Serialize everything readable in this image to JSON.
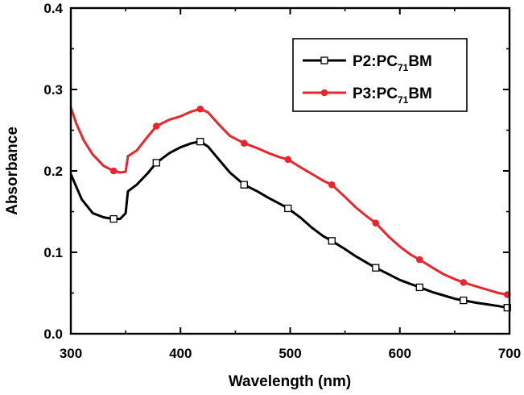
{
  "chart_data": {
    "type": "line",
    "xlabel": "Wavelength (nm)",
    "ylabel": "Absorbance",
    "xlim": [
      300,
      700
    ],
    "ylim": [
      0.0,
      0.4
    ],
    "xticks": [
      "300",
      "400",
      "500",
      "600",
      "700"
    ],
    "yticks": [
      "0.0",
      "0.1",
      "0.2",
      "0.3",
      "0.4"
    ],
    "grid": false,
    "legend_position": "top-right",
    "series": [
      {
        "name_prefix": "P2:PC",
        "name_sub": "71",
        "name_suffix": "BM",
        "color": "#000000",
        "marker": "open-square",
        "curve": [
          [
            300,
            0.196
          ],
          [
            310,
            0.165
          ],
          [
            320,
            0.148
          ],
          [
            330,
            0.143
          ],
          [
            339,
            0.141
          ],
          [
            345,
            0.141
          ],
          [
            350,
            0.148
          ],
          [
            352,
            0.175
          ],
          [
            360,
            0.183
          ],
          [
            370,
            0.197
          ],
          [
            378,
            0.21
          ],
          [
            390,
            0.222
          ],
          [
            400,
            0.229
          ],
          [
            410,
            0.234
          ],
          [
            418,
            0.236
          ],
          [
            425,
            0.23
          ],
          [
            435,
            0.214
          ],
          [
            445,
            0.198
          ],
          [
            458,
            0.183
          ],
          [
            470,
            0.175
          ],
          [
            480,
            0.167
          ],
          [
            490,
            0.16
          ],
          [
            498,
            0.154
          ],
          [
            510,
            0.142
          ],
          [
            520,
            0.13
          ],
          [
            530,
            0.12
          ],
          [
            538,
            0.114
          ],
          [
            550,
            0.104
          ],
          [
            560,
            0.095
          ],
          [
            570,
            0.087
          ],
          [
            578,
            0.081
          ],
          [
            590,
            0.073
          ],
          [
            600,
            0.066
          ],
          [
            610,
            0.061
          ],
          [
            618,
            0.057
          ],
          [
            630,
            0.051
          ],
          [
            640,
            0.047
          ],
          [
            650,
            0.043
          ],
          [
            658,
            0.041
          ],
          [
            670,
            0.038
          ],
          [
            680,
            0.036
          ],
          [
            690,
            0.034
          ],
          [
            698,
            0.032
          ]
        ],
        "markers": [
          [
            339,
            0.141
          ],
          [
            378,
            0.21
          ],
          [
            418,
            0.236
          ],
          [
            458,
            0.183
          ],
          [
            498,
            0.154
          ],
          [
            538,
            0.114
          ],
          [
            578,
            0.081
          ],
          [
            618,
            0.057
          ],
          [
            658,
            0.041
          ],
          [
            698,
            0.032
          ]
        ]
      },
      {
        "name_prefix": "P3:PC",
        "name_sub": "71",
        "name_suffix": "BM",
        "color": "#e8262b",
        "marker": "filled-circle",
        "curve": [
          [
            300,
            0.278
          ],
          [
            305,
            0.258
          ],
          [
            312,
            0.237
          ],
          [
            320,
            0.22
          ],
          [
            330,
            0.206
          ],
          [
            339,
            0.2
          ],
          [
            345,
            0.198
          ],
          [
            350,
            0.199
          ],
          [
            352,
            0.218
          ],
          [
            360,
            0.225
          ],
          [
            370,
            0.242
          ],
          [
            378,
            0.255
          ],
          [
            390,
            0.263
          ],
          [
            400,
            0.267
          ],
          [
            410,
            0.273
          ],
          [
            418,
            0.276
          ],
          [
            425,
            0.272
          ],
          [
            435,
            0.257
          ],
          [
            445,
            0.243
          ],
          [
            458,
            0.234
          ],
          [
            470,
            0.228
          ],
          [
            480,
            0.222
          ],
          [
            490,
            0.217
          ],
          [
            498,
            0.214
          ],
          [
            510,
            0.204
          ],
          [
            520,
            0.196
          ],
          [
            530,
            0.188
          ],
          [
            538,
            0.183
          ],
          [
            550,
            0.168
          ],
          [
            560,
            0.155
          ],
          [
            570,
            0.144
          ],
          [
            578,
            0.136
          ],
          [
            590,
            0.119
          ],
          [
            600,
            0.107
          ],
          [
            610,
            0.097
          ],
          [
            618,
            0.091
          ],
          [
            630,
            0.081
          ],
          [
            640,
            0.073
          ],
          [
            650,
            0.067
          ],
          [
            658,
            0.063
          ],
          [
            670,
            0.058
          ],
          [
            680,
            0.054
          ],
          [
            690,
            0.05
          ],
          [
            698,
            0.048
          ]
        ],
        "markers": [
          [
            339,
            0.2
          ],
          [
            378,
            0.255
          ],
          [
            418,
            0.276
          ],
          [
            458,
            0.234
          ],
          [
            498,
            0.214
          ],
          [
            538,
            0.183
          ],
          [
            578,
            0.136
          ],
          [
            618,
            0.091
          ],
          [
            658,
            0.063
          ],
          [
            698,
            0.048
          ]
        ]
      }
    ]
  }
}
